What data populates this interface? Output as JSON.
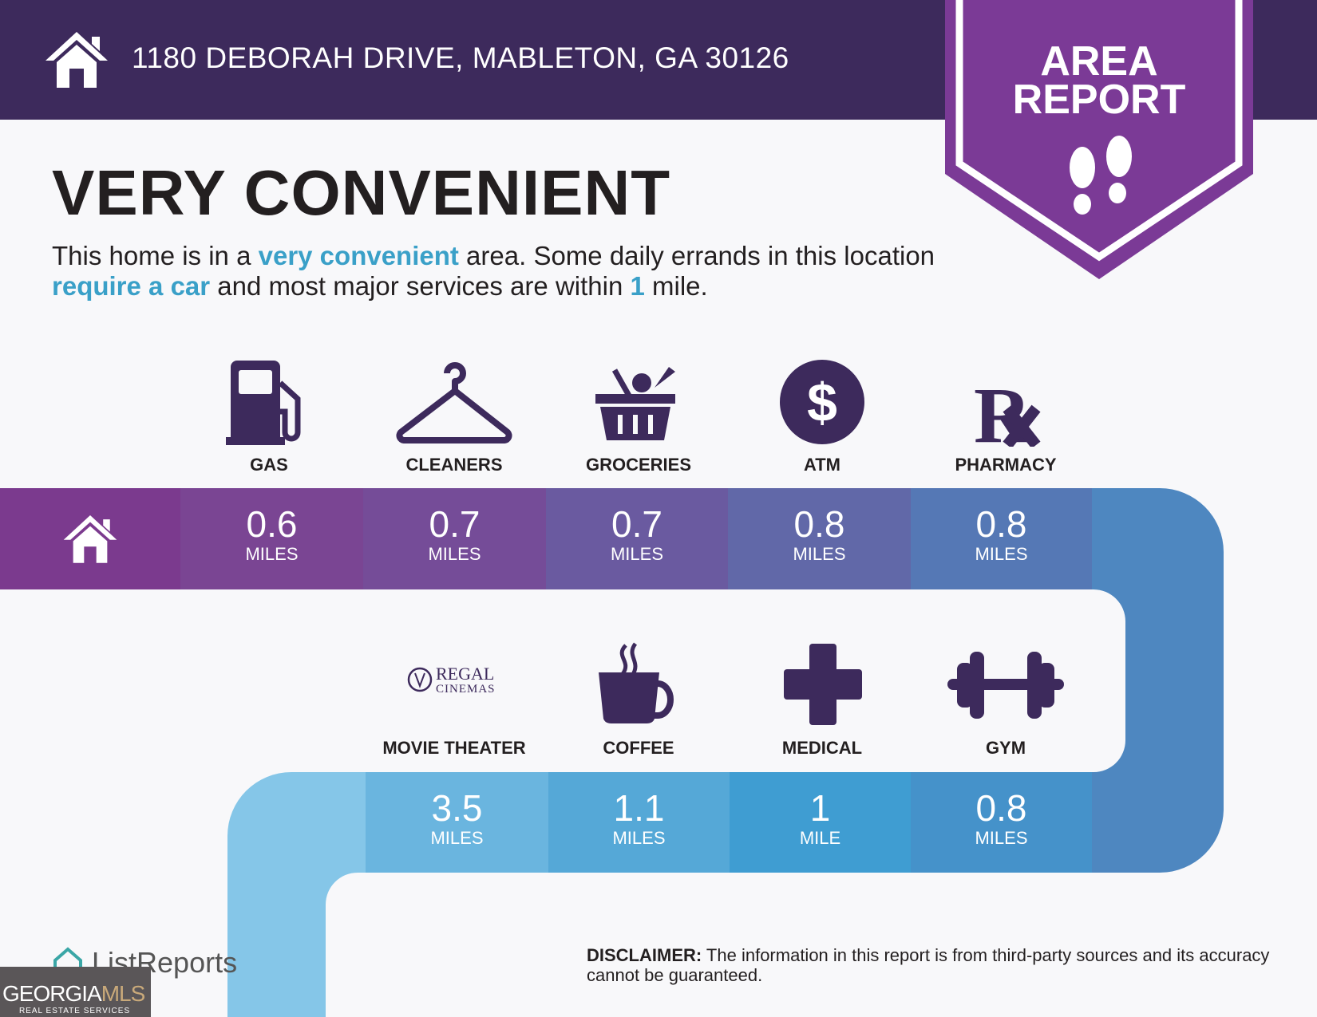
{
  "header": {
    "address": "1180 DEBORAH DRIVE, MABLETON, GA 30126",
    "badge_line1": "AREA",
    "badge_line2": "REPORT"
  },
  "title": "VERY CONVENIENT",
  "description": {
    "t1": "This home is in a ",
    "h1": "very convenient",
    "t2": " area. Some daily errands in this location ",
    "h2": "require a car",
    "t3": " and most major services are within ",
    "h3": "1",
    "t4": " mile."
  },
  "row1": [
    {
      "label": "GAS",
      "value": "0.6",
      "unit": "MILES",
      "icon": "gas-pump-icon"
    },
    {
      "label": "CLEANERS",
      "value": "0.7",
      "unit": "MILES",
      "icon": "hanger-icon"
    },
    {
      "label": "GROCERIES",
      "value": "0.7",
      "unit": "MILES",
      "icon": "basket-icon"
    },
    {
      "label": "ATM",
      "value": "0.8",
      "unit": "MILES",
      "icon": "dollar-icon"
    },
    {
      "label": "PHARMACY",
      "value": "0.8",
      "unit": "MILES",
      "icon": "rx-icon"
    }
  ],
  "row2": [
    {
      "label": "MOVIE THEATER",
      "value": "3.5",
      "unit": "MILES",
      "icon": "regal-cinemas-logo",
      "logo_text1": "REGAL",
      "logo_text2": "CINEMAS"
    },
    {
      "label": "COFFEE",
      "value": "1.1",
      "unit": "MILES",
      "icon": "coffee-cup-icon"
    },
    {
      "label": "MEDICAL",
      "value": "1",
      "unit": "MILE",
      "icon": "medical-cross-icon"
    },
    {
      "label": "GYM",
      "value": "0.8",
      "unit": "MILES",
      "icon": "dumbbell-icon"
    }
  ],
  "footer": {
    "brand": "ListReports",
    "disclaimer_label": "DISCLAIMER:",
    "disclaimer": " The information in this report is from third-party sources and its accuracy cannot be guaranteed.",
    "mls1": "GEORGIA",
    "mls2": "MLS",
    "mls3": "REAL ESTATE SERVICES"
  },
  "colors": {
    "header": "#3d2a5c",
    "badge": "#7b3a96",
    "accent": "#3aa0c8",
    "icon": "#3d2a5c"
  }
}
